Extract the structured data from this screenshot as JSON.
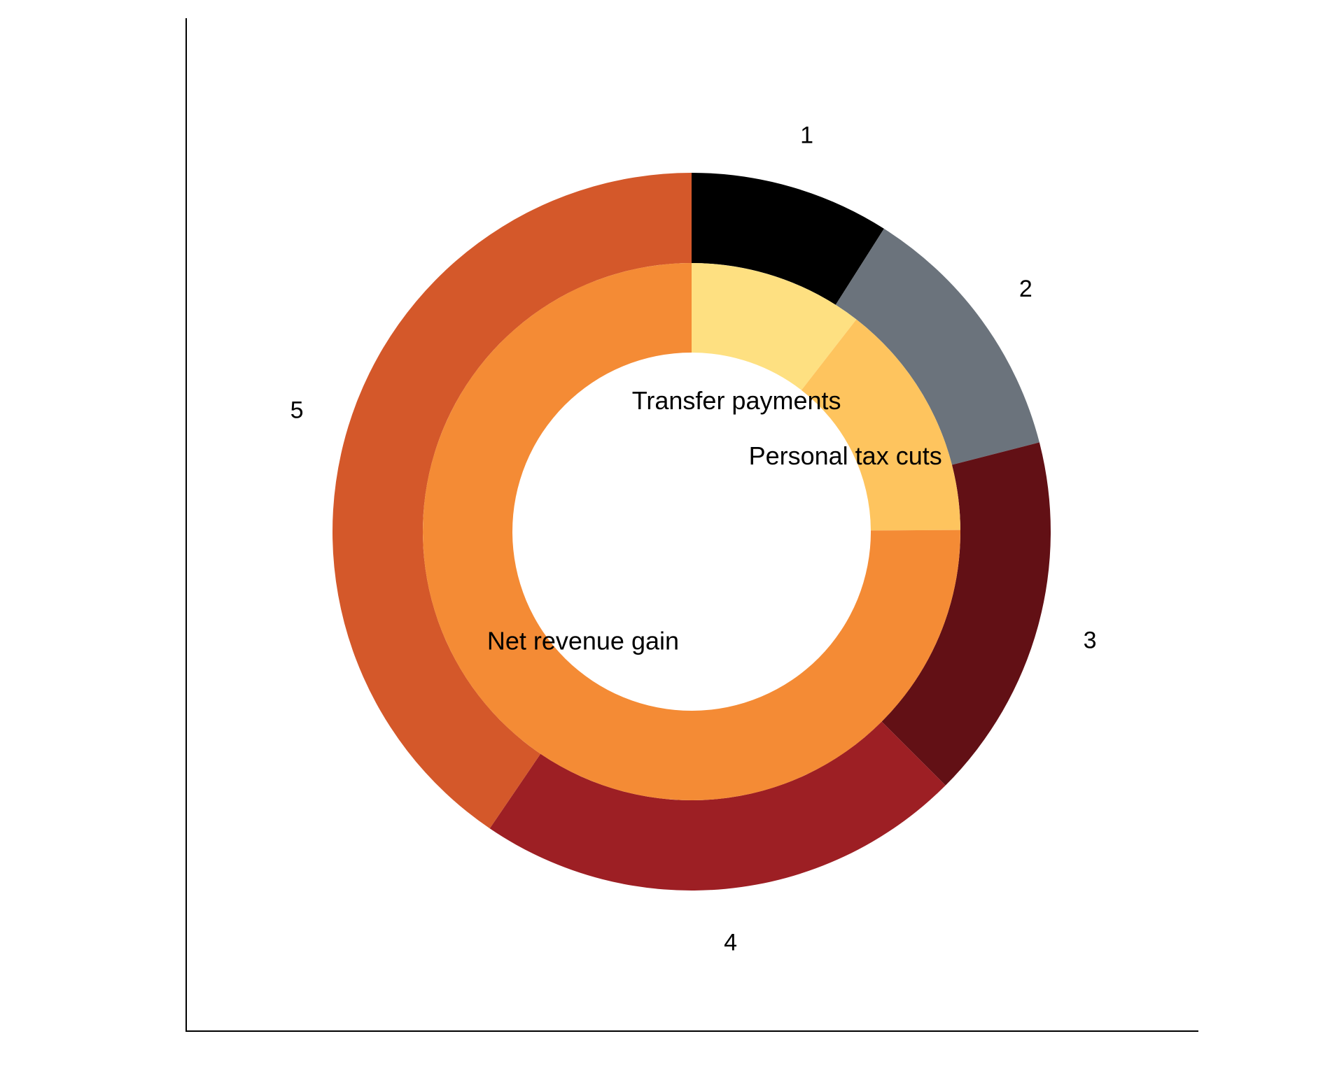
{
  "chart_data": {
    "type": "pie",
    "subtype": "nested-donut",
    "title": "",
    "legend": "none",
    "axis_lines": [
      "left",
      "bottom"
    ],
    "outer_ring": {
      "labels": [
        "1",
        "2",
        "3",
        "4",
        "5"
      ],
      "values": [
        9.0,
        12.0,
        16.5,
        22.0,
        40.5
      ],
      "colors": [
        "#000000",
        "#6b737c",
        "#621015",
        "#9d1f24",
        "#d4582a"
      ]
    },
    "inner_ring": {
      "labels": [
        "Transfer payments",
        "Personal tax cuts",
        "Net revenue gain"
      ],
      "values": [
        10.5,
        14.4,
        75.1
      ],
      "colors": [
        "#fee081",
        "#fec45e",
        "#f48b35"
      ]
    }
  }
}
